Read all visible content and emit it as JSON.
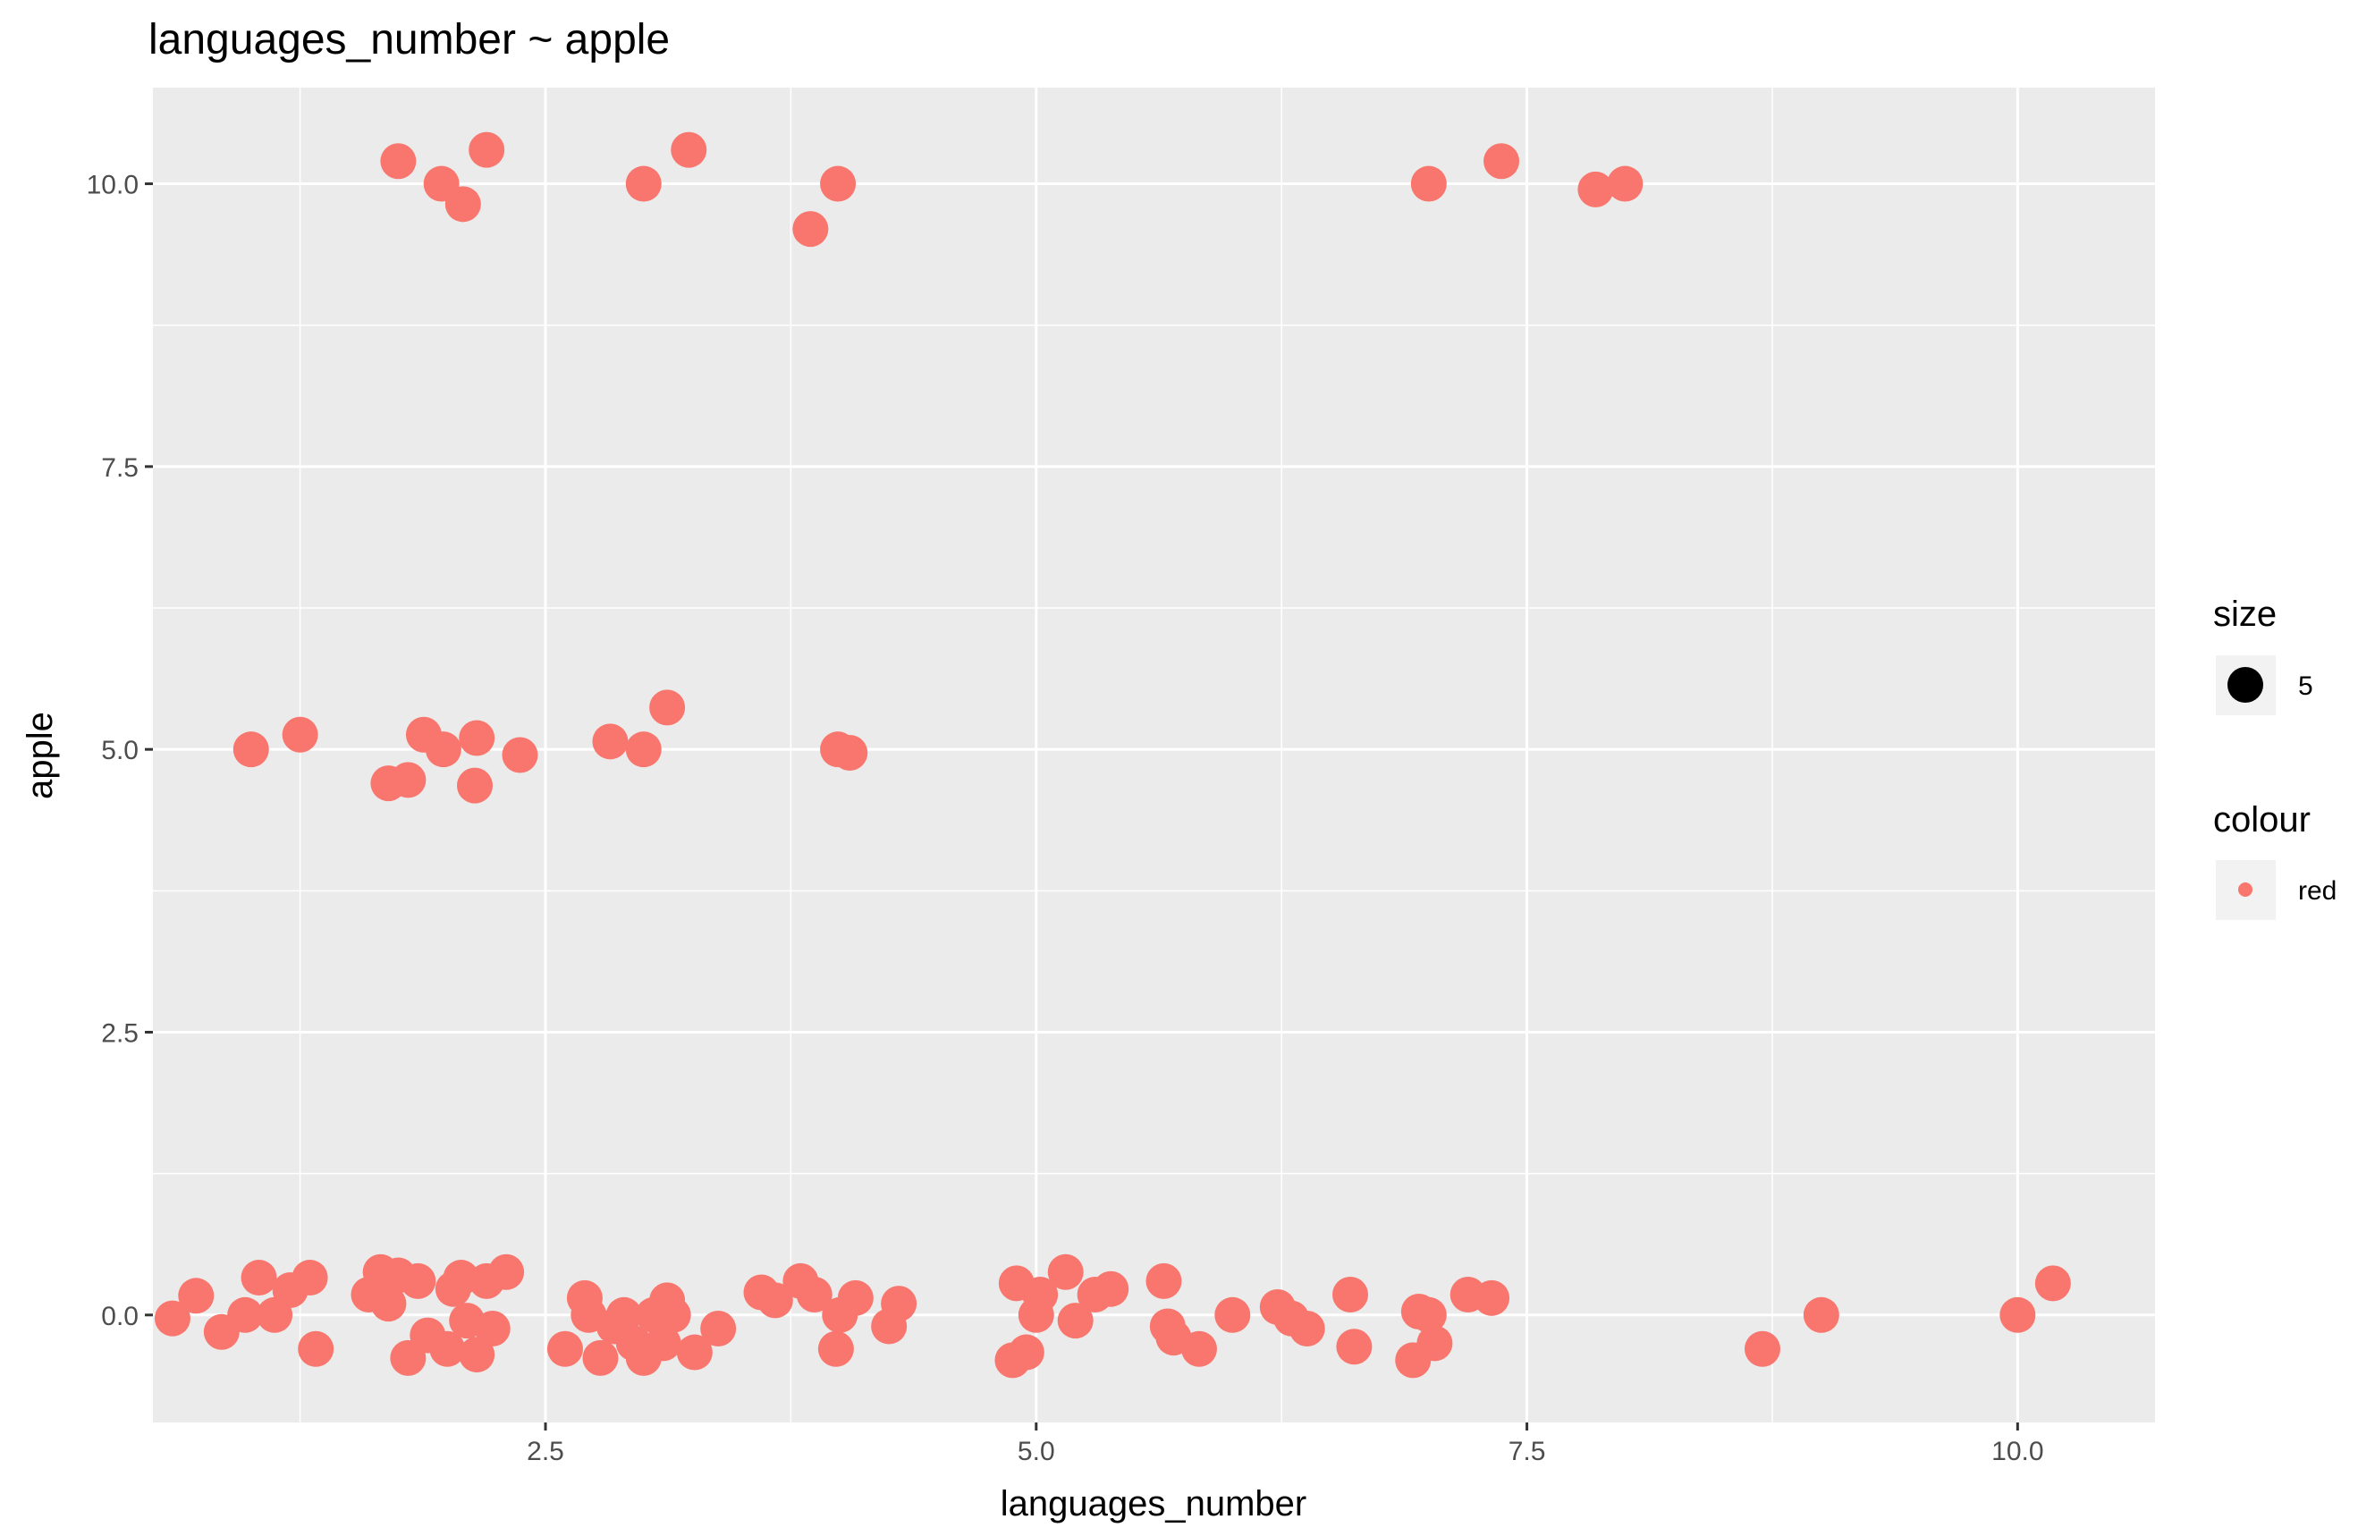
{
  "chart_data": {
    "type": "scatter",
    "title": "languages_number ~ apple",
    "xlabel": "languages_number",
    "ylabel": "apple",
    "xlim": [
      0.5,
      10.7
    ],
    "ylim": [
      -0.95,
      10.85
    ],
    "x_ticks": [
      2.5,
      5.0,
      7.5,
      10.0
    ],
    "x_tick_labels": [
      "2.5",
      "5.0",
      "7.5",
      "10.0"
    ],
    "y_ticks": [
      0.0,
      2.5,
      5.0,
      7.5,
      10.0
    ],
    "y_tick_labels": [
      "0.0",
      "2.5",
      "5.0",
      "7.5",
      "10.0"
    ],
    "grid": true,
    "point_color": "#F8766D",
    "panel_background": "#EBEBEB",
    "legend": {
      "position": "right",
      "size": {
        "title": "size",
        "label": "5"
      },
      "colour": {
        "title": "colour",
        "label": "red"
      }
    },
    "points": [
      [
        1.75,
        10.2
      ],
      [
        1.97,
        10.0
      ],
      [
        2.08,
        9.82
      ],
      [
        2.2,
        10.3
      ],
      [
        3.0,
        10.0
      ],
      [
        3.23,
        10.3
      ],
      [
        3.85,
        9.6
      ],
      [
        3.99,
        10.0
      ],
      [
        7.0,
        10.0
      ],
      [
        7.37,
        10.2
      ],
      [
        7.85,
        9.95
      ],
      [
        8.0,
        10.0
      ],
      [
        1.0,
        5.0
      ],
      [
        1.25,
        5.13
      ],
      [
        1.7,
        4.7
      ],
      [
        1.8,
        4.73
      ],
      [
        1.88,
        5.13
      ],
      [
        1.98,
        5.0
      ],
      [
        2.14,
        4.68
      ],
      [
        2.15,
        5.1
      ],
      [
        2.37,
        4.95
      ],
      [
        2.83,
        5.07
      ],
      [
        3.0,
        5.0
      ],
      [
        3.12,
        5.37
      ],
      [
        3.99,
        5.0
      ],
      [
        4.05,
        4.97
      ],
      [
        0.6,
        -0.03
      ],
      [
        0.72,
        0.17
      ],
      [
        0.85,
        -0.15
      ],
      [
        0.97,
        0.0
      ],
      [
        1.04,
        0.33
      ],
      [
        1.12,
        0.0
      ],
      [
        1.2,
        0.22
      ],
      [
        1.3,
        0.33
      ],
      [
        1.33,
        -0.3
      ],
      [
        1.6,
        0.18
      ],
      [
        1.66,
        0.38
      ],
      [
        1.7,
        0.1
      ],
      [
        1.75,
        0.35
      ],
      [
        1.8,
        -0.38
      ],
      [
        1.85,
        0.3
      ],
      [
        1.9,
        -0.18
      ],
      [
        2.0,
        -0.3
      ],
      [
        2.03,
        0.23
      ],
      [
        2.07,
        0.33
      ],
      [
        2.1,
        -0.05
      ],
      [
        2.15,
        -0.35
      ],
      [
        2.2,
        0.3
      ],
      [
        2.23,
        -0.12
      ],
      [
        2.3,
        0.38
      ],
      [
        2.6,
        -0.3
      ],
      [
        2.7,
        0.15
      ],
      [
        2.72,
        0.0
      ],
      [
        2.78,
        -0.38
      ],
      [
        2.85,
        -0.1
      ],
      [
        2.9,
        0.0
      ],
      [
        2.95,
        -0.25
      ],
      [
        3.0,
        -0.38
      ],
      [
        3.05,
        0.0
      ],
      [
        3.1,
        -0.25
      ],
      [
        3.12,
        0.13
      ],
      [
        3.15,
        0.0
      ],
      [
        3.26,
        -0.33
      ],
      [
        3.38,
        -0.12
      ],
      [
        3.6,
        0.2
      ],
      [
        3.67,
        0.13
      ],
      [
        3.8,
        0.3
      ],
      [
        3.87,
        0.18
      ],
      [
        3.98,
        -0.3
      ],
      [
        4.0,
        0.0
      ],
      [
        4.08,
        0.15
      ],
      [
        4.25,
        -0.1
      ],
      [
        4.3,
        0.1
      ],
      [
        4.88,
        -0.4
      ],
      [
        4.9,
        0.28
      ],
      [
        4.95,
        -0.33
      ],
      [
        5.0,
        0.0
      ],
      [
        5.02,
        0.18
      ],
      [
        5.15,
        0.38
      ],
      [
        5.2,
        -0.05
      ],
      [
        5.3,
        0.18
      ],
      [
        5.38,
        0.23
      ],
      [
        5.65,
        0.3
      ],
      [
        5.67,
        -0.1
      ],
      [
        5.7,
        -0.2
      ],
      [
        5.83,
        -0.3
      ],
      [
        6.0,
        0.0
      ],
      [
        6.23,
        0.07
      ],
      [
        6.3,
        -0.03
      ],
      [
        6.38,
        -0.12
      ],
      [
        6.6,
        0.18
      ],
      [
        6.62,
        -0.28
      ],
      [
        6.92,
        -0.4
      ],
      [
        6.95,
        0.03
      ],
      [
        7.0,
        0.0
      ],
      [
        7.03,
        -0.25
      ],
      [
        7.2,
        0.18
      ],
      [
        7.32,
        0.15
      ],
      [
        8.7,
        -0.3
      ],
      [
        9.0,
        0.0
      ],
      [
        10.0,
        0.0
      ],
      [
        10.18,
        0.28
      ]
    ]
  }
}
